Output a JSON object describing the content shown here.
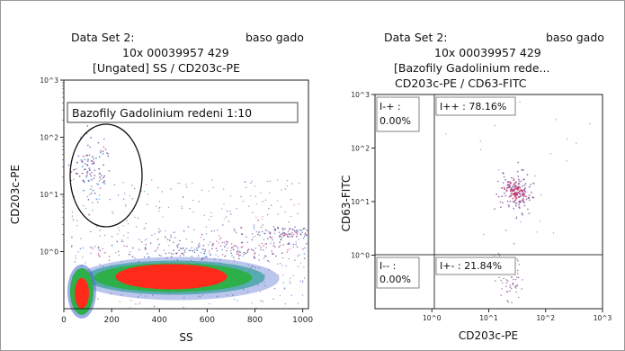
{
  "chart_data": [
    {
      "type": "scatter",
      "header": {
        "line1_left": "Data Set 2:",
        "line1_right": "baso gado",
        "line2": "10x 00039957 429",
        "line3": "[Ungated] SS / CD203c-PE"
      },
      "xlabel": "SS",
      "ylabel": "CD203c-PE",
      "x_scale": "linear",
      "y_scale": "log",
      "xlim": [
        0,
        1024
      ],
      "ylim": [
        0.1,
        1000
      ],
      "x_ticks": [
        "0",
        "200",
        "400",
        "600",
        "800",
        "1000"
      ],
      "x_tick_values": [
        0,
        200,
        400,
        600,
        800,
        1000
      ],
      "y_ticks": [
        "10^0",
        "10^1",
        "10^2",
        "10^3"
      ],
      "y_tick_values": [
        1,
        10,
        100,
        1000
      ],
      "annotation": "Bazofily Gadolinium redeni 1:10",
      "gate": {
        "shape": "ellipse",
        "x_center": 120,
        "y_center": 25
      },
      "populations": [
        {
          "x": 480,
          "y": 0.35,
          "density": "very high"
        },
        {
          "x": 75,
          "y": 0.2,
          "density": "high"
        },
        {
          "x": 115,
          "y": 30,
          "density": "low"
        }
      ]
    },
    {
      "type": "scatter",
      "header": {
        "line1_left": "Data Set 2:",
        "line1_right": "baso gado",
        "line2": "10x 00039957 429",
        "line3": "[Bazofily Gadolinium rede...",
        "line4": "CD203c-PE / CD63-FITC"
      },
      "xlabel": "CD203c-PE",
      "ylabel": "CD63-FITC",
      "x_scale": "log",
      "y_scale": "log",
      "xlim": [
        0.1,
        1000
      ],
      "ylim": [
        0.1,
        1000
      ],
      "x_ticks": [
        "10^0",
        "10^1",
        "10^2",
        "10^3"
      ],
      "x_tick_values": [
        1,
        10,
        100,
        1000
      ],
      "y_ticks": [
        "10^0",
        "10^1",
        "10^2",
        "10^3"
      ],
      "y_tick_values": [
        1,
        10,
        100,
        1000
      ],
      "quadrants": [
        {
          "label": "I-+ :",
          "value": "0.00%"
        },
        {
          "label": "I++ :",
          "value": "78.16%"
        },
        {
          "label": "I-- :",
          "value": "0.00%"
        },
        {
          "label": "I+- :",
          "value": "21.84%"
        }
      ],
      "populations": [
        {
          "x": 30,
          "y": 15,
          "density": "medium"
        }
      ]
    }
  ]
}
